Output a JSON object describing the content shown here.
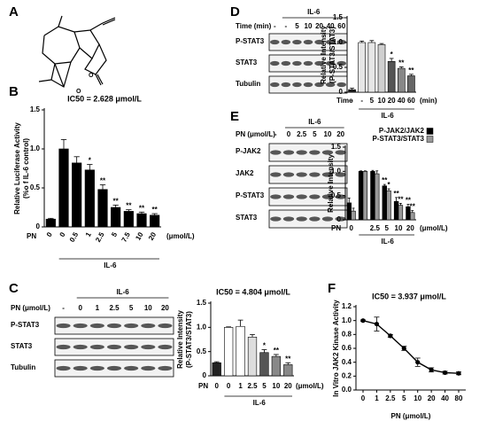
{
  "panels": [
    "A",
    "B",
    "C",
    "D",
    "E",
    "F"
  ],
  "blots": [
    {
      "header": "IL-6",
      "lane_title": "PN (μmol/L)",
      "lanes": [
        "-",
        "0",
        "1",
        "2.5",
        "5",
        "10",
        "20"
      ],
      "rows": [
        "P-STAT3",
        "STAT3",
        "Tubulin"
      ]
    },
    {
      "header": "IL-6",
      "lane_title": "Time (min)",
      "lanes": [
        "-",
        "-",
        "5",
        "10",
        "20",
        "40",
        "60"
      ],
      "rows": [
        "P-STAT3",
        "STAT3",
        "Tubulin"
      ]
    },
    {
      "header": "IL-6",
      "lane_title": "PN (μmol/L)",
      "lanes": [
        "-",
        "0",
        "2.5",
        "5",
        "10",
        "20"
      ],
      "rows": [
        "P-JAK2",
        "JAK2",
        "P-STAT3",
        "STAT3"
      ]
    }
  ],
  "chart_data": [
    {
      "type": "bar",
      "title": "IC50 = 2.628 μmol/L",
      "y_label": [
        "Relative Luciferase Activity",
        "(%o f IL-6 control)"
      ],
      "x_label": "IL-6",
      "row_label": "PN",
      "unit_label": "(μmol/L)",
      "categories": [
        "0",
        "0",
        "0.5",
        "1",
        "2.5",
        "5",
        "7.5",
        "10",
        "20"
      ],
      "series": [
        {
          "color": "#000000",
          "values": [
            0.1,
            1.0,
            0.82,
            0.73,
            0.48,
            0.25,
            0.2,
            0.17,
            0.15
          ],
          "errors": [
            0.01,
            0.12,
            0.08,
            0.07,
            0.06,
            0.03,
            0.02,
            0.02,
            0.02
          ],
          "significance": [
            null,
            null,
            null,
            "*",
            "**",
            "**",
            "**",
            "**",
            "**"
          ]
        }
      ],
      "ylim": [
        0,
        1.5
      ],
      "yticks": [
        0,
        0.5,
        {
          "value": 1,
          "label": "1.0"
        },
        1.5
      ]
    },
    {
      "type": "bar",
      "title": "IC50 = 4.804 μmol/L",
      "y_label": [
        "Relative Intensity",
        "(P-STAT3/STAT3)"
      ],
      "x_label": "IL-6",
      "row_label": "PN",
      "unit_label": "(μmol/L)",
      "categories": [
        "0",
        "0",
        "1",
        "2.5",
        "5",
        "10",
        "20"
      ],
      "series": [
        {
          "colors": [
            "#222222",
            "#ffffff",
            "#ffffff",
            "#dddddd",
            "#555555",
            "#888888",
            "#888888"
          ],
          "values": [
            0.27,
            1.0,
            1.02,
            0.8,
            0.48,
            0.4,
            0.23
          ],
          "errors": [
            0.02,
            0.01,
            0.13,
            0.05,
            0.06,
            0.04,
            0.04
          ],
          "significance": [
            null,
            null,
            null,
            null,
            "*",
            "**",
            "**"
          ]
        }
      ],
      "ylim": [
        0,
        1.5
      ],
      "yticks": [
        0,
        0.5,
        {
          "value": 1,
          "label": "1.0"
        },
        1.5
      ]
    },
    {
      "type": "bar",
      "y_label": [
        "Relative Intensity",
        "(P-STAT3/STAT3)"
      ],
      "x_label": "IL-6",
      "row_label": "Time",
      "unit_label": "(min)",
      "categories": [
        "-",
        "-",
        "5",
        "10",
        "20",
        "40",
        "60"
      ],
      "series": [
        {
          "colors": [
            "#222222",
            "#e6e6e6",
            "#e6e6e6",
            "#d0d0d0",
            "#555555",
            "#888888",
            "#666666"
          ],
          "values": [
            0.05,
            1.0,
            1.0,
            0.96,
            0.62,
            0.48,
            0.33
          ],
          "errors": [
            0.03,
            0.03,
            0.04,
            0.02,
            0.06,
            0.03,
            0.03
          ],
          "significance": [
            null,
            null,
            null,
            null,
            "*",
            "**",
            "**"
          ]
        }
      ],
      "ylim": [
        0,
        1.5
      ],
      "yticks": [
        0,
        0.5,
        {
          "value": 1,
          "label": "1.0"
        },
        1.5
      ]
    },
    {
      "type": "bar",
      "y_label": [
        "Relative Intensity"
      ],
      "x_label": "IL-6",
      "row_label": "PN",
      "unit_label": "(μmol/L)",
      "categories": [
        "0",
        null,
        "2.5",
        "5",
        "10",
        "20"
      ],
      "series": [
        {
          "name": "P-JAK2/JAK2",
          "color": "#000000",
          "values": [
            0.35,
            1.0,
            1.0,
            0.7,
            0.38,
            0.27
          ],
          "errors": [
            0.1,
            0.01,
            0.02,
            0.03,
            0.08,
            0.05
          ],
          "significance": [
            null,
            null,
            null,
            "**",
            "**",
            "**"
          ]
        },
        {
          "name": "P-STAT3/STAT3",
          "color": "#999999",
          "values": [
            0.18,
            1.0,
            0.95,
            0.6,
            0.3,
            0.15
          ],
          "errors": [
            0.06,
            0.01,
            0.06,
            0.04,
            0.04,
            0.04
          ],
          "significance": [
            null,
            null,
            null,
            "*",
            "**",
            "**"
          ]
        }
      ],
      "ylim": [
        0,
        1.5
      ],
      "yticks": [
        0,
        0.5,
        {
          "value": 1,
          "label": "1.0"
        },
        1.5
      ]
    },
    {
      "type": "line",
      "title": "IC50 = 3.937 μmol/L",
      "y_label": [
        "In Vitro JAK2 Kinase Activity"
      ],
      "x_label": "PN (μmol/L)",
      "categories": [
        "0",
        "1",
        "2.5",
        "5",
        "10",
        "20",
        "40",
        "80"
      ],
      "series": [
        {
          "color": "#000000",
          "values": [
            1.0,
            0.95,
            0.78,
            0.6,
            0.4,
            0.29,
            0.25,
            0.24
          ],
          "errors": [
            0.01,
            0.1,
            0.02,
            0.03,
            0.06,
            0.03,
            0.02,
            0.02
          ]
        }
      ],
      "ylim": [
        0,
        1.2
      ],
      "yticks": [
        {
          "value": 0,
          "label": "0.0"
        },
        {
          "value": 0.2,
          "label": "0.2"
        },
        {
          "value": 0.4,
          "label": "0.4"
        },
        {
          "value": 0.6,
          "label": "0.6"
        },
        {
          "value": 0.8,
          "label": "0.8"
        },
        {
          "value": 1,
          "label": "1.0"
        },
        {
          "value": 1.2,
          "label": "1.2"
        }
      ]
    }
  ]
}
